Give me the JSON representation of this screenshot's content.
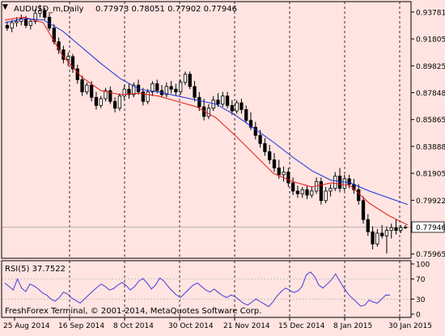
{
  "window": {
    "symbol_title": "AUDUSD_m,Daily",
    "ohlc": "0.77973 0.78051 0.77902 0.77946",
    "copyright": "FreshForex Terminal, © 2001-2014, MetaQuotes Software Corp."
  },
  "colors": {
    "background": "#ffe4e1",
    "frame": "#000000",
    "candle_body": "#000000",
    "ma_fast": "#e8140f",
    "ma_slow": "#1e32d8",
    "rsi_line": "#4a3ad8",
    "rsi_levels": "#b8b8b8",
    "price_badge_bg": "#ffffff"
  },
  "chart_data": [
    {
      "type": "candlestick",
      "title": "AUDUSD_m,Daily",
      "current_price": 0.77946,
      "current_price_label": "0.77946",
      "ylim": [
        0.7565,
        0.9455
      ],
      "y_ticks": [
        0.75965,
        0.77946,
        0.79922,
        0.81905,
        0.83888,
        0.85865,
        0.87848,
        0.89825,
        0.91805,
        0.93781
      ],
      "y_tick_labels": [
        "0.75965",
        "0.77946",
        "0.79922",
        "0.81905",
        "0.83888",
        "0.85865",
        "0.87848",
        "0.89825",
        "0.91805",
        "0.93781"
      ],
      "x_labels": [
        "25 Aug 2014",
        "16 Sep 2014",
        "8 Oct 2014",
        "30 Oct 2014",
        "21 Nov 2014",
        "15 Dec 2014",
        "8 Jan 2015",
        "30 Jan 2015"
      ],
      "grid": "vertical dashed",
      "series": [
        {
          "name": "",
          "kind": "ma_fast",
          "points": [
            [
              0,
              0.932
            ],
            [
              10,
              0.934
            ],
            [
              20,
              0.93
            ],
            [
              30,
              0.906
            ],
            [
              40,
              0.89
            ],
            [
              50,
              0.88
            ],
            [
              60,
              0.877
            ],
            [
              70,
              0.878
            ],
            [
              80,
              0.876
            ],
            [
              90,
              0.872
            ],
            [
              100,
              0.868
            ],
            [
              110,
              0.86
            ],
            [
              120,
              0.847
            ],
            [
              130,
              0.833
            ],
            [
              140,
              0.819
            ],
            [
              150,
              0.813
            ],
            [
              160,
              0.809
            ],
            [
              170,
              0.812
            ],
            [
              180,
              0.81
            ],
            [
              190,
              0.797
            ],
            [
              200,
              0.788
            ],
            [
              210,
              0.781
            ]
          ]
        },
        {
          "name": "",
          "kind": "ma_slow",
          "points": [
            [
              0,
              0.93
            ],
            [
              10,
              0.933
            ],
            [
              20,
              0.932
            ],
            [
              30,
              0.924
            ],
            [
              40,
              0.912
            ],
            [
              50,
              0.9
            ],
            [
              60,
              0.889
            ],
            [
              70,
              0.881
            ],
            [
              80,
              0.879
            ],
            [
              90,
              0.876
            ],
            [
              100,
              0.873
            ],
            [
              110,
              0.87
            ],
            [
              120,
              0.862
            ],
            [
              130,
              0.852
            ],
            [
              140,
              0.842
            ],
            [
              150,
              0.831
            ],
            [
              160,
              0.821
            ],
            [
              170,
              0.814
            ],
            [
              180,
              0.812
            ],
            [
              190,
              0.806
            ],
            [
              200,
              0.801
            ],
            [
              210,
              0.796
            ]
          ]
        }
      ],
      "candles": [
        [
          0.928,
          0.931,
          0.924,
          0.926
        ],
        [
          0.926,
          0.932,
          0.923,
          0.93
        ],
        [
          0.93,
          0.934,
          0.927,
          0.931
        ],
        [
          0.931,
          0.936,
          0.928,
          0.933
        ],
        [
          0.933,
          0.935,
          0.926,
          0.928
        ],
        [
          0.928,
          0.933,
          0.925,
          0.931
        ],
        [
          0.931,
          0.94,
          0.929,
          0.937
        ],
        [
          0.937,
          0.943,
          0.934,
          0.939
        ],
        [
          0.939,
          0.941,
          0.932,
          0.934
        ],
        [
          0.934,
          0.937,
          0.924,
          0.926
        ],
        [
          0.926,
          0.929,
          0.914,
          0.916
        ],
        [
          0.916,
          0.919,
          0.907,
          0.91
        ],
        [
          0.91,
          0.913,
          0.9,
          0.903
        ],
        [
          0.903,
          0.908,
          0.898,
          0.905
        ],
        [
          0.905,
          0.907,
          0.893,
          0.896
        ],
        [
          0.896,
          0.899,
          0.885,
          0.888
        ],
        [
          0.888,
          0.891,
          0.876,
          0.879
        ],
        [
          0.879,
          0.886,
          0.877,
          0.884
        ],
        [
          0.884,
          0.887,
          0.872,
          0.875
        ],
        [
          0.875,
          0.879,
          0.866,
          0.869
        ],
        [
          0.869,
          0.876,
          0.867,
          0.874
        ],
        [
          0.874,
          0.882,
          0.872,
          0.88
        ],
        [
          0.88,
          0.883,
          0.87,
          0.872
        ],
        [
          0.872,
          0.875,
          0.864,
          0.867
        ],
        [
          0.867,
          0.878,
          0.865,
          0.876
        ],
        [
          0.876,
          0.884,
          0.873,
          0.881
        ],
        [
          0.881,
          0.885,
          0.874,
          0.877
        ],
        [
          0.877,
          0.886,
          0.875,
          0.884
        ],
        [
          0.884,
          0.888,
          0.877,
          0.879
        ],
        [
          0.879,
          0.882,
          0.869,
          0.872
        ],
        [
          0.872,
          0.881,
          0.87,
          0.879
        ],
        [
          0.879,
          0.887,
          0.876,
          0.885
        ],
        [
          0.885,
          0.888,
          0.878,
          0.88
        ],
        [
          0.88,
          0.884,
          0.875,
          0.877
        ],
        [
          0.877,
          0.886,
          0.875,
          0.883
        ],
        [
          0.883,
          0.887,
          0.878,
          0.881
        ],
        [
          0.881,
          0.885,
          0.876,
          0.879
        ],
        [
          0.879,
          0.888,
          0.877,
          0.886
        ],
        [
          0.886,
          0.894,
          0.884,
          0.892
        ],
        [
          0.892,
          0.894,
          0.881,
          0.883
        ],
        [
          0.883,
          0.887,
          0.872,
          0.875
        ],
        [
          0.875,
          0.879,
          0.865,
          0.868
        ],
        [
          0.868,
          0.874,
          0.858,
          0.861
        ],
        [
          0.861,
          0.87,
          0.859,
          0.867
        ],
        [
          0.867,
          0.876,
          0.865,
          0.873
        ],
        [
          0.873,
          0.878,
          0.868,
          0.87
        ],
        [
          0.87,
          0.879,
          0.868,
          0.876
        ],
        [
          0.876,
          0.879,
          0.867,
          0.869
        ],
        [
          0.869,
          0.873,
          0.862,
          0.865
        ],
        [
          0.865,
          0.873,
          0.863,
          0.871
        ],
        [
          0.871,
          0.874,
          0.863,
          0.866
        ],
        [
          0.866,
          0.869,
          0.856,
          0.858
        ],
        [
          0.858,
          0.864,
          0.851,
          0.853
        ],
        [
          0.853,
          0.857,
          0.844,
          0.847
        ],
        [
          0.847,
          0.851,
          0.838,
          0.841
        ],
        [
          0.841,
          0.845,
          0.832,
          0.835
        ],
        [
          0.835,
          0.84,
          0.826,
          0.829
        ],
        [
          0.829,
          0.834,
          0.82,
          0.823
        ],
        [
          0.823,
          0.829,
          0.815,
          0.818
        ],
        [
          0.818,
          0.824,
          0.813,
          0.82
        ],
        [
          0.82,
          0.823,
          0.809,
          0.812
        ],
        [
          0.812,
          0.816,
          0.803,
          0.806
        ],
        [
          0.806,
          0.81,
          0.801,
          0.804
        ],
        [
          0.804,
          0.809,
          0.801,
          0.807
        ],
        [
          0.807,
          0.81,
          0.8,
          0.803
        ],
        [
          0.803,
          0.809,
          0.801,
          0.806
        ],
        [
          0.806,
          0.816,
          0.804,
          0.813
        ],
        [
          0.813,
          0.816,
          0.796,
          0.799
        ],
        [
          0.799,
          0.809,
          0.797,
          0.806
        ],
        [
          0.806,
          0.811,
          0.802,
          0.808
        ],
        [
          0.808,
          0.82,
          0.806,
          0.817
        ],
        [
          0.817,
          0.823,
          0.805,
          0.808
        ],
        [
          0.808,
          0.818,
          0.806,
          0.815
        ],
        [
          0.815,
          0.818,
          0.808,
          0.811
        ],
        [
          0.811,
          0.815,
          0.804,
          0.807
        ],
        [
          0.807,
          0.811,
          0.796,
          0.799
        ],
        [
          0.799,
          0.802,
          0.782,
          0.785
        ],
        [
          0.785,
          0.789,
          0.773,
          0.776
        ],
        [
          0.776,
          0.78,
          0.763,
          0.767
        ],
        [
          0.767,
          0.778,
          0.765,
          0.775
        ],
        [
          0.775,
          0.781,
          0.771,
          0.773
        ],
        [
          0.773,
          0.78,
          0.76,
          0.777
        ],
        [
          0.777,
          0.782,
          0.771,
          0.779
        ],
        [
          0.779,
          0.785,
          0.774,
          0.777
        ],
        [
          0.777,
          0.781,
          0.775,
          0.779
        ],
        [
          0.779,
          0.781,
          0.778,
          0.7795
        ]
      ]
    },
    {
      "type": "line",
      "title": "RSI(5) 37.7522",
      "ylim": [
        0,
        100
      ],
      "y_tick_labels": [
        "100",
        "70",
        "30",
        "0"
      ],
      "levels": [
        70,
        30
      ],
      "values": [
        62,
        55,
        48,
        70,
        52,
        45,
        60,
        56,
        50,
        42,
        38,
        30,
        26,
        33,
        44,
        40,
        32,
        27,
        22,
        30,
        38,
        46,
        53,
        60,
        55,
        48,
        51,
        58,
        63,
        57,
        48,
        55,
        66,
        71,
        62,
        50,
        58,
        72,
        66,
        55,
        46,
        38,
        33,
        42,
        50,
        58,
        62,
        55,
        48,
        44,
        50,
        43,
        37,
        33,
        38,
        35,
        28,
        22,
        18,
        24,
        30,
        25,
        20,
        15,
        24,
        36,
        45,
        52,
        48,
        43,
        46,
        55,
        78,
        84,
        75,
        58,
        52,
        60,
        68,
        80,
        66,
        52,
        40,
        32,
        24,
        16,
        18,
        28,
        24,
        22,
        30,
        38,
        37.75
      ]
    }
  ]
}
